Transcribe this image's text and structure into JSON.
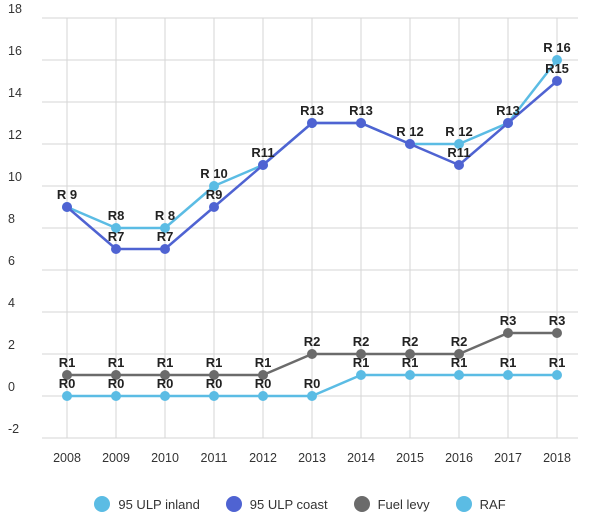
{
  "chart_data": {
    "type": "line",
    "title": "",
    "xlabel": "",
    "ylabel": "",
    "categories": [
      "2008",
      "2009",
      "2010",
      "2011",
      "2012",
      "2013",
      "2014",
      "2015",
      "2016",
      "2017",
      "2018"
    ],
    "ylim": [
      -2,
      18
    ],
    "yticks": [
      -2,
      0,
      2,
      4,
      6,
      8,
      10,
      12,
      14,
      16,
      18
    ],
    "grid": true,
    "legend_position": "bottom",
    "series": [
      {
        "name": "95 ULP inland",
        "color": "#5bbce4",
        "values": [
          9,
          8,
          8,
          10,
          11,
          13,
          13,
          12,
          12,
          13,
          16
        ],
        "labels": [
          "",
          "R8",
          "R 8",
          "R 10",
          "",
          "",
          "",
          "",
          "R 12",
          "",
          "R 16"
        ]
      },
      {
        "name": "95 ULP coast",
        "color": "#4f63d2",
        "values": [
          9,
          7,
          7,
          9,
          11,
          13,
          13,
          12,
          11,
          13,
          15
        ],
        "labels": [
          "R 9",
          "R7",
          "R7",
          "R9",
          "R11",
          "R13",
          "R13",
          "R 12",
          "R11",
          "R13",
          "R15"
        ]
      },
      {
        "name": "Fuel levy",
        "color": "#6b6b6b",
        "values": [
          1,
          1,
          1,
          1,
          1,
          2,
          2,
          2,
          2,
          3,
          3
        ],
        "labels": [
          "R1",
          "R1",
          "R1",
          "R1",
          "R1",
          "R2",
          "R2",
          "R2",
          "R2",
          "R3",
          "R3"
        ]
      },
      {
        "name": "RAF",
        "color": "#5bbce4",
        "values": [
          0,
          0,
          0,
          0,
          0,
          0,
          1,
          1,
          1,
          1,
          1
        ],
        "labels": [
          "R0",
          "R0",
          "R0",
          "R0",
          "R0",
          "R0",
          "R1",
          "R1",
          "R1",
          "R1",
          "R1"
        ]
      }
    ]
  }
}
